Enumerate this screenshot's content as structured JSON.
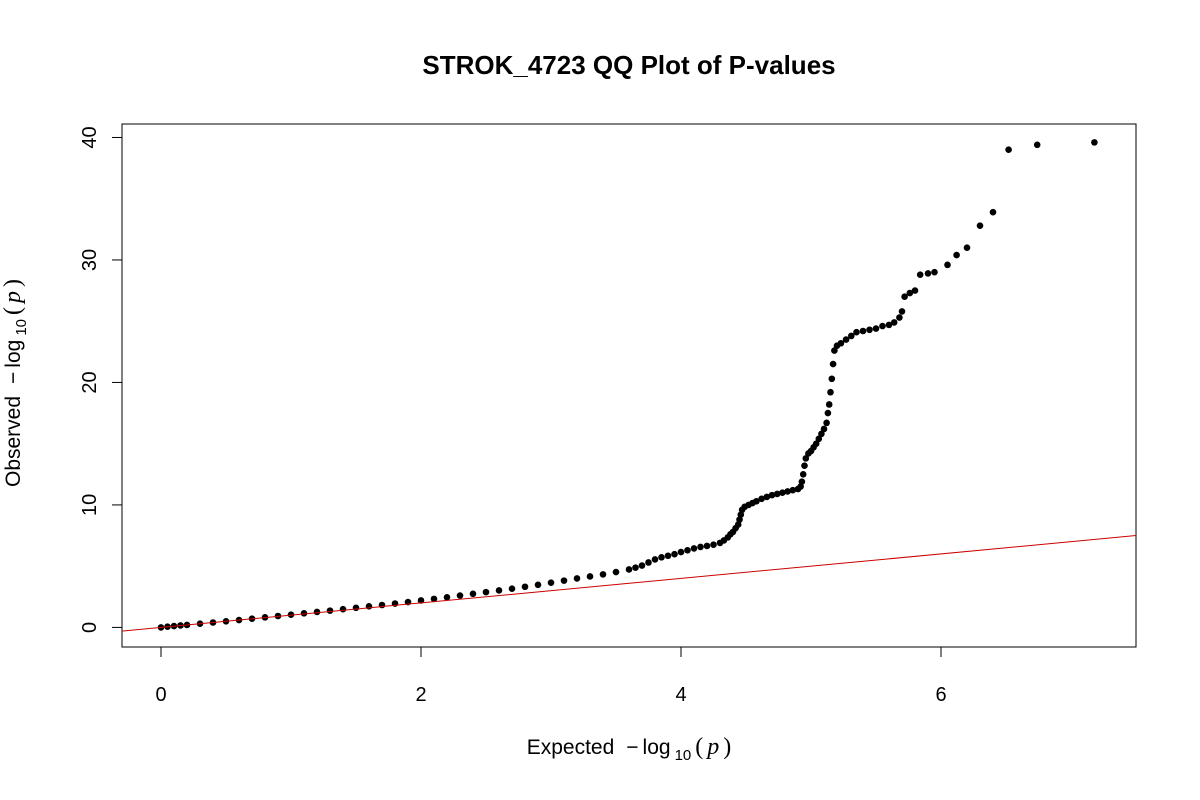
{
  "chart_data": {
    "type": "scatter",
    "title": "STROK_4723 QQ Plot of P-values",
    "xlabel": {
      "text": "Expected",
      "minus": "−",
      "log": "log",
      "sub": "10",
      "open": "(",
      "var": "p",
      "close": ")"
    },
    "ylabel": {
      "text": "Observed",
      "minus": "−",
      "log": "log",
      "sub": "10",
      "open": "(",
      "var": "p",
      "close": ")"
    },
    "xlim": [
      -0.3,
      7.5
    ],
    "ylim": [
      -1.6,
      41.1
    ],
    "x_ticks": [
      0,
      2,
      4,
      6
    ],
    "y_ticks": [
      0,
      10,
      20,
      30,
      40
    ],
    "grid": false,
    "point_color": "#000000",
    "reference_line": {
      "slope": 1,
      "intercept": 0,
      "color": "#cc0000"
    },
    "series": [
      {
        "points": [
          [
            0.0,
            0.0
          ],
          [
            0.05,
            0.06
          ],
          [
            0.1,
            0.11
          ],
          [
            0.15,
            0.16
          ],
          [
            0.2,
            0.2
          ],
          [
            0.3,
            0.3
          ],
          [
            0.4,
            0.4
          ],
          [
            0.5,
            0.5
          ],
          [
            0.6,
            0.6
          ],
          [
            0.7,
            0.71
          ],
          [
            0.8,
            0.82
          ],
          [
            0.9,
            0.93
          ],
          [
            1.0,
            1.04
          ],
          [
            1.1,
            1.15
          ],
          [
            1.2,
            1.26
          ],
          [
            1.3,
            1.37
          ],
          [
            1.4,
            1.49
          ],
          [
            1.5,
            1.6
          ],
          [
            1.6,
            1.72
          ],
          [
            1.7,
            1.83
          ],
          [
            1.8,
            1.95
          ],
          [
            1.9,
            2.07
          ],
          [
            2.0,
            2.2
          ],
          [
            2.1,
            2.33
          ],
          [
            2.2,
            2.46
          ],
          [
            2.3,
            2.6
          ],
          [
            2.4,
            2.74
          ],
          [
            2.5,
            2.88
          ],
          [
            2.6,
            3.02
          ],
          [
            2.7,
            3.16
          ],
          [
            2.8,
            3.32
          ],
          [
            2.9,
            3.48
          ],
          [
            3.0,
            3.65
          ],
          [
            3.1,
            3.82
          ],
          [
            3.2,
            4.0
          ],
          [
            3.3,
            4.16
          ],
          [
            3.4,
            4.33
          ],
          [
            3.5,
            4.52
          ],
          [
            3.6,
            4.73
          ],
          [
            3.65,
            4.88
          ],
          [
            3.7,
            5.05
          ],
          [
            3.75,
            5.3
          ],
          [
            3.8,
            5.55
          ],
          [
            3.85,
            5.72
          ],
          [
            3.9,
            5.85
          ],
          [
            3.95,
            5.98
          ],
          [
            4.0,
            6.15
          ],
          [
            4.05,
            6.3
          ],
          [
            4.1,
            6.45
          ],
          [
            4.15,
            6.57
          ],
          [
            4.2,
            6.65
          ],
          [
            4.25,
            6.75
          ],
          [
            4.3,
            6.9
          ],
          [
            4.33,
            7.1
          ],
          [
            4.36,
            7.35
          ],
          [
            4.38,
            7.6
          ],
          [
            4.4,
            7.8
          ],
          [
            4.42,
            8.1
          ],
          [
            4.44,
            8.4
          ],
          [
            4.45,
            8.8
          ],
          [
            4.46,
            9.2
          ],
          [
            4.47,
            9.6
          ],
          [
            4.49,
            9.85
          ],
          [
            4.52,
            10.0
          ],
          [
            4.55,
            10.15
          ],
          [
            4.58,
            10.3
          ],
          [
            4.62,
            10.5
          ],
          [
            4.66,
            10.65
          ],
          [
            4.7,
            10.8
          ],
          [
            4.74,
            10.9
          ],
          [
            4.78,
            11.0
          ],
          [
            4.82,
            11.1
          ],
          [
            4.86,
            11.2
          ],
          [
            4.9,
            11.3
          ],
          [
            4.92,
            11.5
          ],
          [
            4.93,
            11.9
          ],
          [
            4.94,
            12.5
          ],
          [
            4.95,
            13.2
          ],
          [
            4.96,
            13.8
          ],
          [
            4.98,
            14.2
          ],
          [
            5.0,
            14.4
          ],
          [
            5.02,
            14.7
          ],
          [
            5.04,
            15.0
          ],
          [
            5.06,
            15.4
          ],
          [
            5.08,
            15.8
          ],
          [
            5.1,
            16.2
          ],
          [
            5.12,
            16.7
          ],
          [
            5.13,
            17.5
          ],
          [
            5.14,
            18.2
          ],
          [
            5.15,
            19.2
          ],
          [
            5.16,
            20.3
          ],
          [
            5.17,
            21.5
          ],
          [
            5.18,
            22.6
          ],
          [
            5.2,
            23.0
          ],
          [
            5.23,
            23.2
          ],
          [
            5.27,
            23.5
          ],
          [
            5.31,
            23.8
          ],
          [
            5.35,
            24.1
          ],
          [
            5.4,
            24.2
          ],
          [
            5.45,
            24.3
          ],
          [
            5.5,
            24.4
          ],
          [
            5.55,
            24.6
          ],
          [
            5.6,
            24.7
          ],
          [
            5.64,
            24.9
          ],
          [
            5.68,
            25.3
          ],
          [
            5.7,
            25.8
          ],
          [
            5.72,
            27.0
          ],
          [
            5.76,
            27.3
          ],
          [
            5.8,
            27.5
          ],
          [
            5.84,
            28.8
          ],
          [
            5.9,
            28.9
          ],
          [
            5.95,
            29.0
          ],
          [
            6.05,
            29.6
          ],
          [
            6.12,
            30.4
          ],
          [
            6.2,
            31.0
          ],
          [
            6.3,
            32.8
          ],
          [
            6.4,
            33.9
          ],
          [
            6.52,
            39.0
          ],
          [
            6.74,
            39.4
          ],
          [
            7.18,
            39.6
          ]
        ]
      }
    ]
  }
}
